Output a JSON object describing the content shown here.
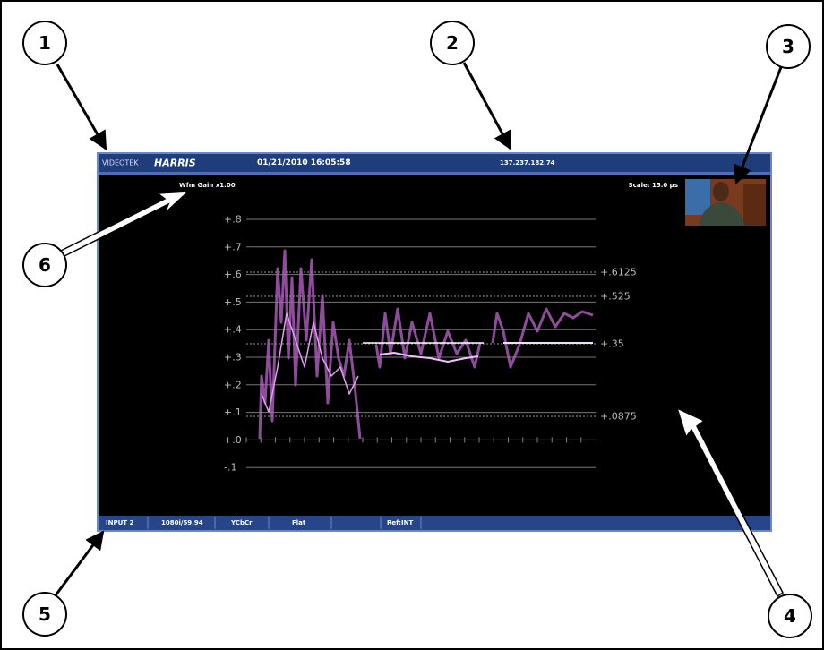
{
  "callouts": [
    "1",
    "2",
    "3",
    "4",
    "5",
    "6"
  ],
  "top_bar": {
    "brand": "VIDEOTEK",
    "logo": "HARRIS",
    "datetime": "01/21/2010 16:05:58",
    "ip": "137.237.182.74"
  },
  "screen": {
    "gain": "Wfm Gain x1.00",
    "scale": "Scale: 15.0 µs",
    "graticule_labels": [
      "+.8",
      "+.7",
      "+.6",
      "+.5",
      "+.4",
      "+.3",
      "+.2",
      "+.1",
      "+.0",
      "-.1"
    ],
    "marker_labels": [
      "+.6125",
      "+.525",
      "+.35",
      "+.0875"
    ]
  },
  "status_bar": [
    "INPUT 2",
    "1080i/59.94",
    "YCbCr",
    "Flat",
    "Ref:INT"
  ]
}
